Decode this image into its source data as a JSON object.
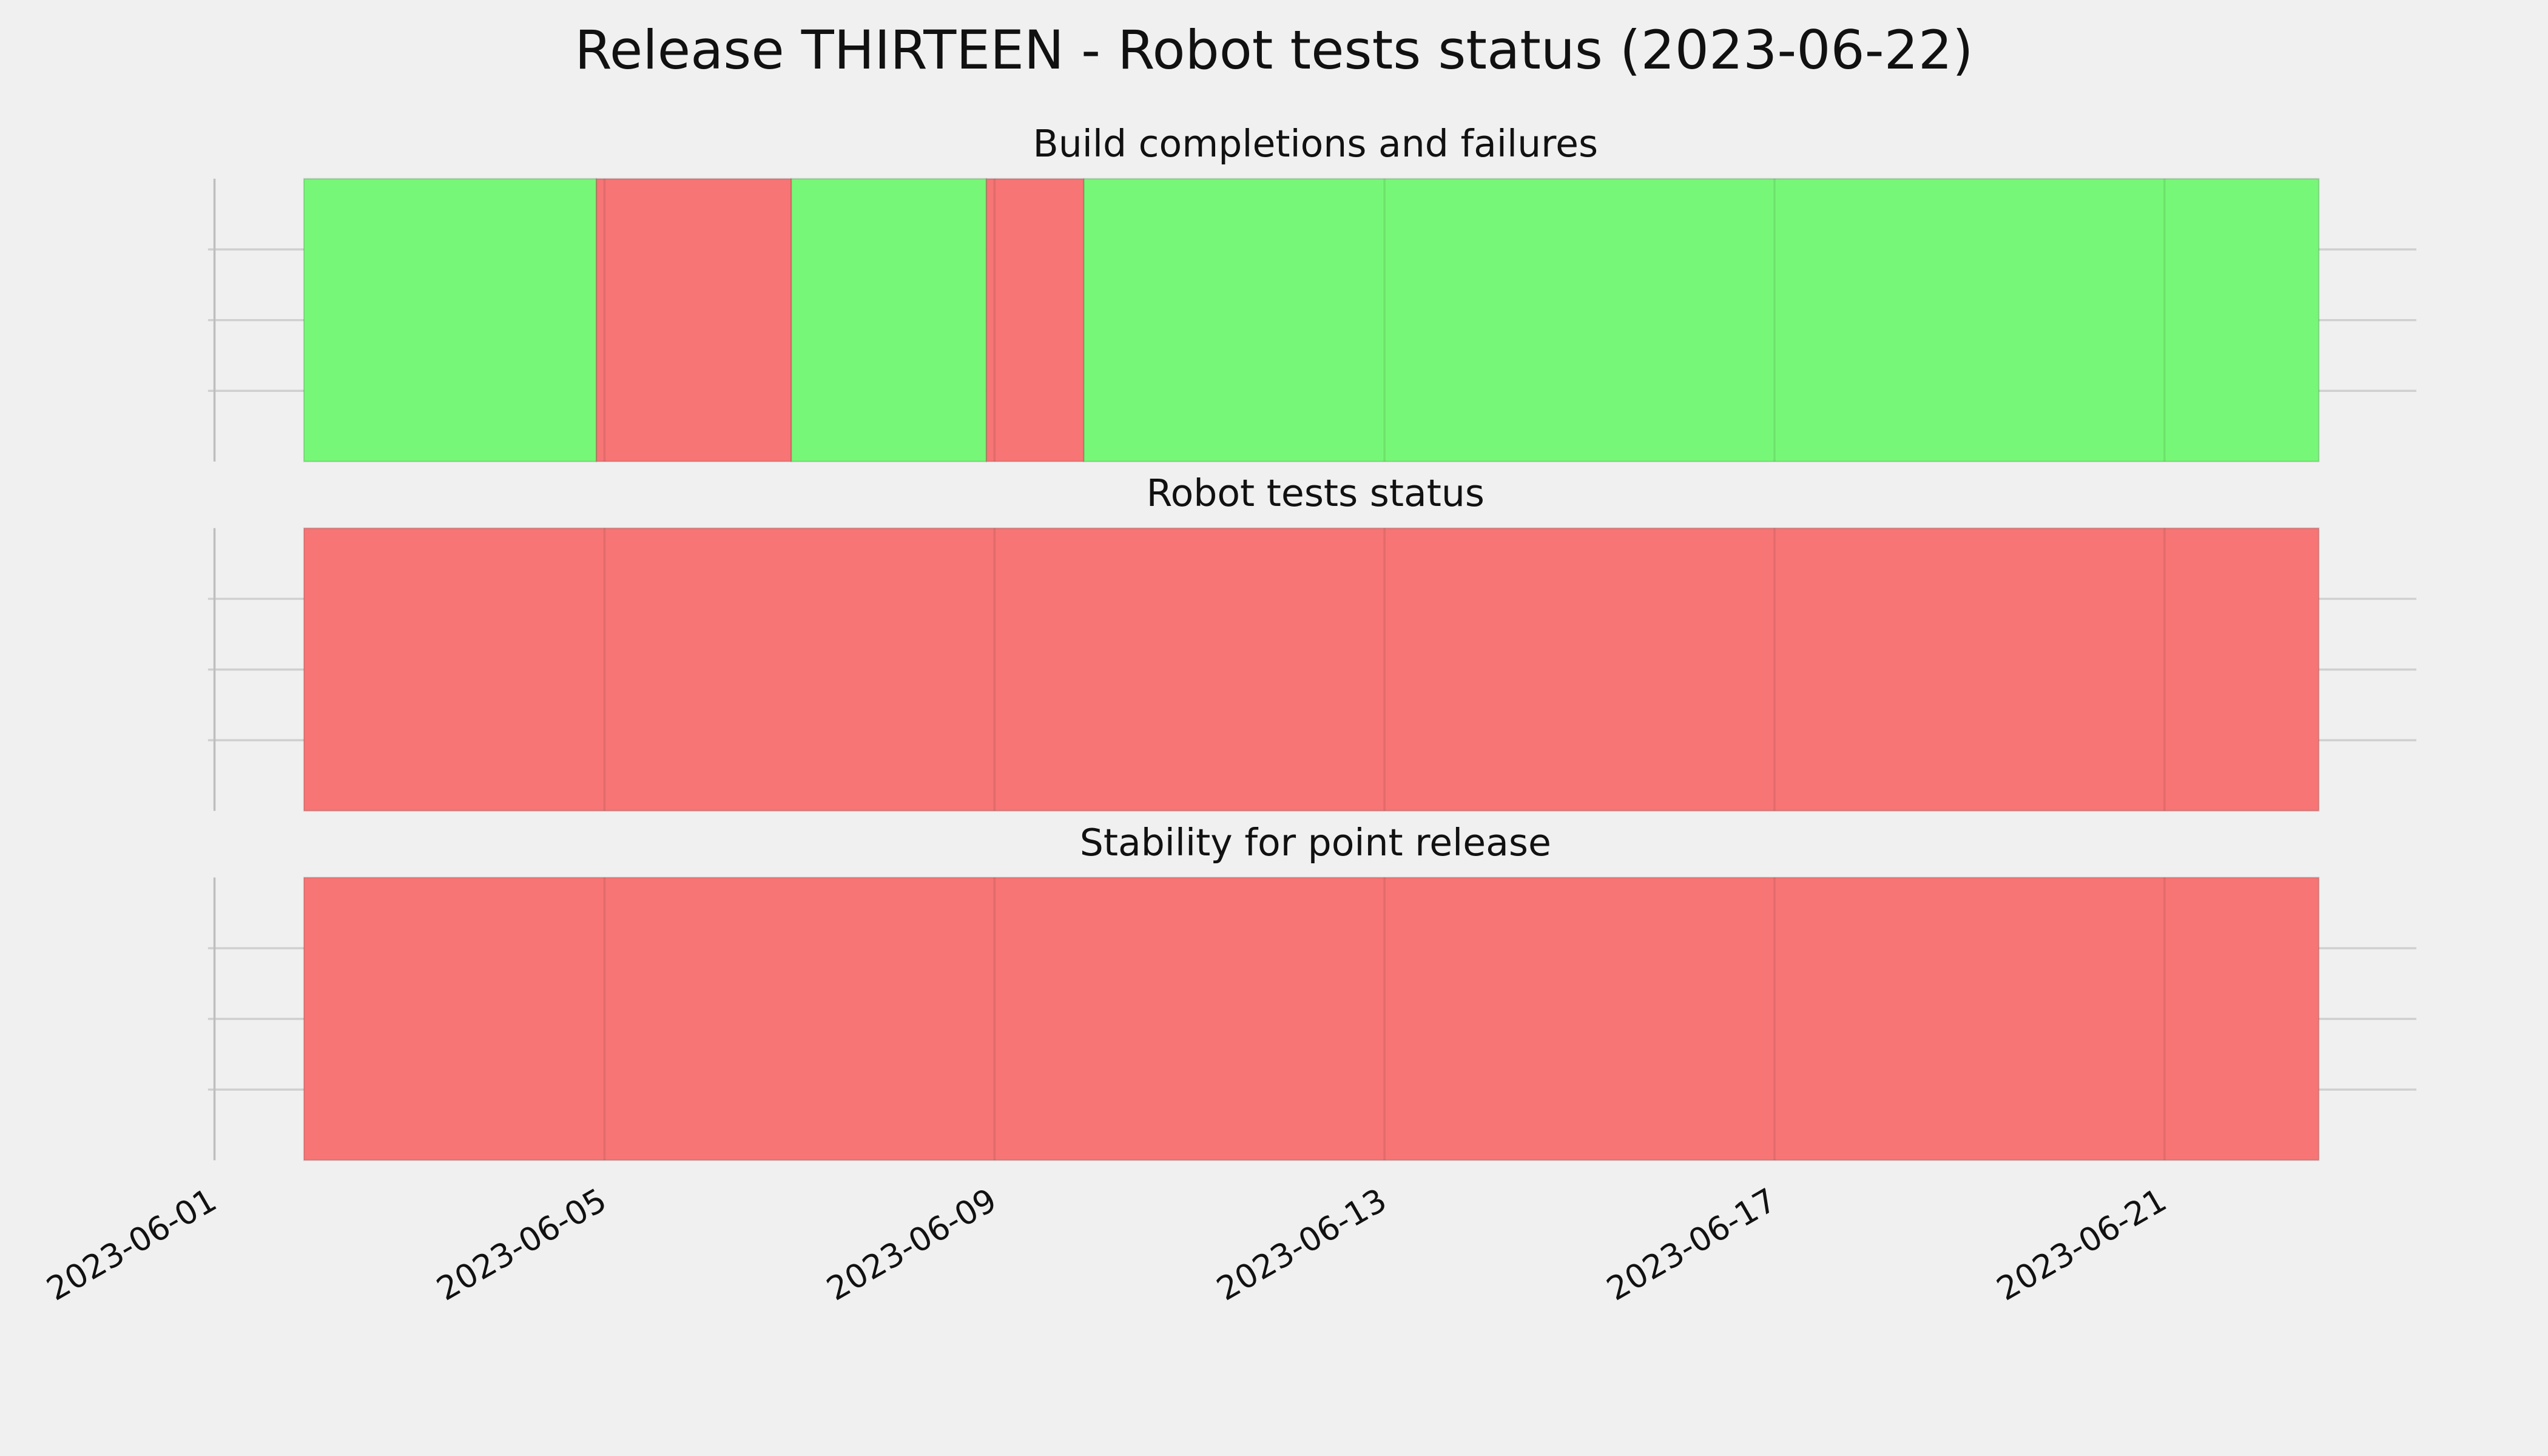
{
  "chart_data": {
    "type": "timeline",
    "title": "Release THIRTEEN - Robot tests status (2023-06-22)",
    "xlim": [
      "2023-06-01T00:00",
      "2023-06-23T14:00"
    ],
    "xticks": [
      "2023-06-01",
      "2023-06-05",
      "2023-06-09",
      "2023-06-13",
      "2023-06-17",
      "2023-06-21"
    ],
    "grid": true,
    "panels": [
      {
        "title": "Build completions and failures",
        "segments": [
          {
            "start": "2023-06-01T22:00",
            "end": "2023-06-04T22:00",
            "color": "#77f777"
          },
          {
            "start": "2023-06-04T22:00",
            "end": "2023-06-06T22:00",
            "color": "#f77575"
          },
          {
            "start": "2023-06-06T22:00",
            "end": "2023-06-08T22:00",
            "color": "#77f777"
          },
          {
            "start": "2023-06-08T22:00",
            "end": "2023-06-09T22:00",
            "color": "#f77575"
          },
          {
            "start": "2023-06-09T22:00",
            "end": "2023-06-22T14:00",
            "color": "#77f777"
          }
        ]
      },
      {
        "title": "Robot tests status",
        "segments": [
          {
            "start": "2023-06-01T22:00",
            "end": "2023-06-22T14:00",
            "color": "#f77575"
          }
        ]
      },
      {
        "title": "Stability for point release",
        "segments": [
          {
            "start": "2023-06-01T22:00",
            "end": "2023-06-22T14:00",
            "color": "#f77575"
          }
        ]
      }
    ]
  }
}
